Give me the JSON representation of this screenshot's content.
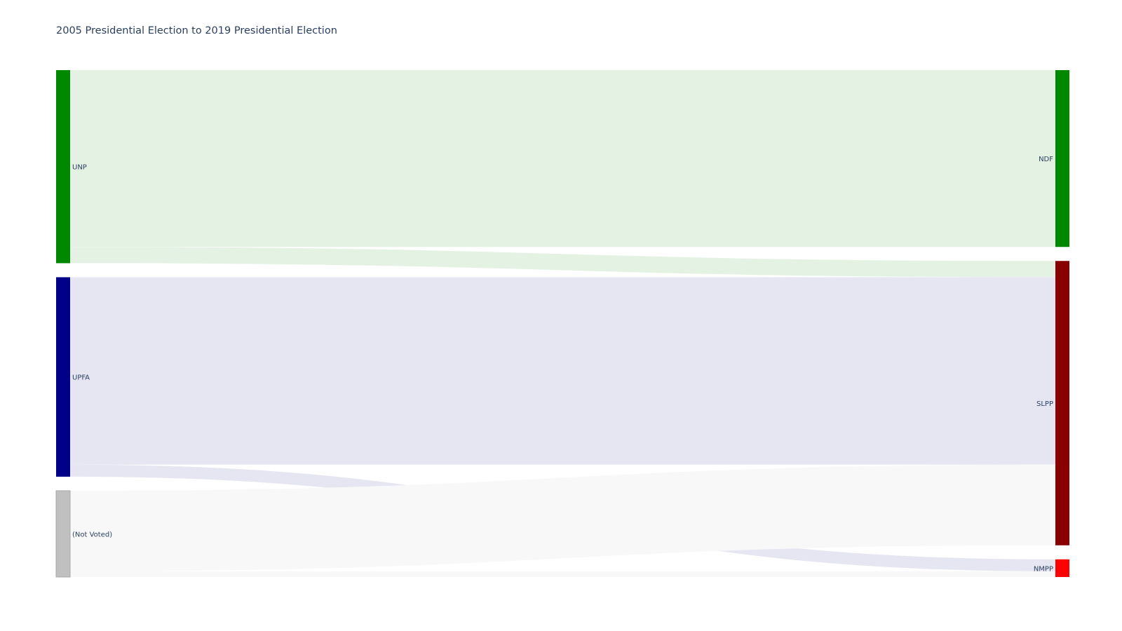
{
  "chart_data": {
    "type": "sankey",
    "title": "2005 Presidential Election to 2019 Presidential Election",
    "source_nodes": [
      {
        "label": "UNP",
        "color": "#008800"
      },
      {
        "label": "UPFA",
        "color": "#000088"
      },
      {
        "label": "(Not Voted)",
        "color": "#c0c0c0"
      }
    ],
    "target_nodes": [
      {
        "label": "NDF",
        "color": "#008800"
      },
      {
        "label": "SLPP",
        "color": "#880000"
      },
      {
        "label": "NMPP",
        "color": "#ff0000"
      }
    ],
    "links": [
      {
        "source": "UNP",
        "target": "NDF",
        "value": 25.0,
        "color": "#e4f2e4"
      },
      {
        "source": "UNP",
        "target": "SLPP",
        "value": 2.3,
        "color": "#e4f2e4"
      },
      {
        "source": "UPFA",
        "target": "SLPP",
        "value": 26.5,
        "color": "#e6e6f3"
      },
      {
        "source": "UPFA",
        "target": "NMPP",
        "value": 1.7,
        "color": "#e6e6f3"
      },
      {
        "source": "(Not Voted)",
        "target": "SLPP",
        "value": 11.4,
        "color": "#f8f8f8"
      },
      {
        "source": "(Not Voted)",
        "target": "NMPP",
        "value": 0.8,
        "color": "#f8f8f8"
      }
    ]
  }
}
